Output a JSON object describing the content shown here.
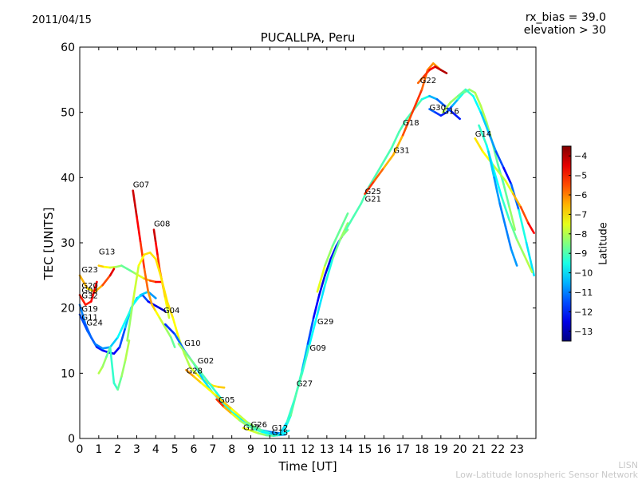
{
  "header": {
    "date": "2011/04/15",
    "rx_bias": "rx_bias = 39.0",
    "elevation": "elevation > 30"
  },
  "footer": {
    "org_short": "LISN",
    "org_long": "Low-Latitude Ionospheric Sensor Network"
  },
  "chart_data": {
    "type": "scatter",
    "title": "PUCALLPA, Peru",
    "xlabel": "Time [UT]",
    "ylabel": "TEC [UNITS]",
    "xlim": [
      0,
      24
    ],
    "ylim": [
      0,
      60
    ],
    "x_ticks": [
      0,
      1,
      2,
      3,
      4,
      5,
      6,
      7,
      8,
      9,
      10,
      11,
      12,
      13,
      14,
      15,
      16,
      17,
      18,
      19,
      20,
      21,
      22,
      23
    ],
    "y_ticks": [
      0,
      10,
      20,
      30,
      40,
      50,
      60
    ],
    "grid": false,
    "colorbar": {
      "label": "Latitude",
      "range": [
        -13.5,
        -3.5
      ],
      "ticks": [
        -4,
        -5,
        -6,
        -7,
        -8,
        -9,
        -10,
        -11,
        -12,
        -13
      ],
      "colormap": "jet"
    },
    "satellite_labels": [
      {
        "text": "G07",
        "x": 2.8,
        "y": 38.5
      },
      {
        "text": "G08",
        "x": 3.9,
        "y": 32.5
      },
      {
        "text": "G13",
        "x": 1.0,
        "y": 28.2
      },
      {
        "text": "G23",
        "x": 0.1,
        "y": 25.5
      },
      {
        "text": "G20",
        "x": 0.1,
        "y": 23.0
      },
      {
        "text": "G03",
        "x": 0.1,
        "y": 22.3
      },
      {
        "text": "G32",
        "x": 0.1,
        "y": 21.5
      },
      {
        "text": "G19",
        "x": 0.1,
        "y": 19.5
      },
      {
        "text": "G11",
        "x": 0.1,
        "y": 18.2
      },
      {
        "text": "G24",
        "x": 0.35,
        "y": 17.3
      },
      {
        "text": "G04",
        "x": 4.4,
        "y": 19.2
      },
      {
        "text": "G10",
        "x": 5.5,
        "y": 14.2
      },
      {
        "text": "G02",
        "x": 6.2,
        "y": 11.5
      },
      {
        "text": "G28",
        "x": 5.6,
        "y": 10.0
      },
      {
        "text": "G05",
        "x": 7.3,
        "y": 5.5
      },
      {
        "text": "G17",
        "x": 8.6,
        "y": 1.3
      },
      {
        "text": "G26",
        "x": 9.0,
        "y": 1.7
      },
      {
        "text": "G12",
        "x": 10.1,
        "y": 1.2
      },
      {
        "text": "G15",
        "x": 10.1,
        "y": 0.5
      },
      {
        "text": "G27",
        "x": 11.4,
        "y": 8.0
      },
      {
        "text": "G09",
        "x": 12.1,
        "y": 13.5
      },
      {
        "text": "G29",
        "x": 12.5,
        "y": 17.5
      },
      {
        "text": "G25",
        "x": 15.0,
        "y": 37.5
      },
      {
        "text": "G21",
        "x": 15.0,
        "y": 36.3
      },
      {
        "text": "G31",
        "x": 16.5,
        "y": 43.8
      },
      {
        "text": "G18",
        "x": 17.0,
        "y": 48.0
      },
      {
        "text": "G22",
        "x": 17.9,
        "y": 54.5
      },
      {
        "text": "G30",
        "x": 18.4,
        "y": 50.3
      },
      {
        "text": "G16",
        "x": 19.1,
        "y": 49.8
      },
      {
        "text": "G14",
        "x": 20.8,
        "y": 46.3
      }
    ],
    "series": [
      {
        "x": [
          0,
          0.3,
          0.6,
          0.9,
          1.2,
          1.5,
          1.8,
          2.1,
          2.4,
          2.7,
          3.0,
          3.3,
          3.6,
          3.9,
          4.2,
          4.5
        ],
        "y": [
          20.5,
          17.5,
          15.5,
          14.0,
          13.5,
          13.2,
          13.0,
          14.0,
          17.0,
          20.0,
          21.5,
          22.0,
          21.0,
          20.5,
          20.0,
          19.5
        ],
        "lat": [
          -11,
          -11,
          -11.5,
          -12,
          -12,
          -12.5,
          -12.5,
          -12,
          -11,
          -10,
          -10,
          -11,
          -12,
          -12.5,
          -12.5,
          -13
        ]
      },
      {
        "x": [
          0,
          0.4,
          0.8,
          1.2,
          1.6,
          2.0,
          2.4,
          2.8,
          3.2,
          3.6,
          4.0
        ],
        "y": [
          19.0,
          16.5,
          14.5,
          13.8,
          14.0,
          15.5,
          18.0,
          20.5,
          22.0,
          22.5,
          21.5
        ],
        "lat": [
          -11.5,
          -11.5,
          -11,
          -11,
          -10.5,
          -10,
          -9.5,
          -9.5,
          -10,
          -10.5,
          -11
        ]
      },
      {
        "x": [
          1.0,
          1.3,
          1.6,
          1.9,
          2.2,
          2.5,
          2.8,
          3.1,
          3.4,
          3.7,
          4.0,
          4.3
        ],
        "y": [
          26.5,
          26.3,
          26.2,
          26.3,
          26.5,
          26.0,
          25.5,
          25.0,
          24.5,
          24.2,
          24.0,
          24.0
        ],
        "lat": [
          -6.5,
          -7,
          -7.5,
          -8,
          -8.5,
          -9,
          -8.5,
          -8,
          -7,
          -6,
          -5,
          -4.5
        ]
      },
      {
        "x": [
          2.8,
          3.0,
          3.2,
          3.4,
          3.6,
          3.8,
          4.0,
          4.2,
          4.4,
          4.6,
          4.8,
          5.0
        ],
        "y": [
          38.0,
          34.0,
          30.0,
          26.0,
          22.5,
          20.5,
          19.5,
          18.5,
          17.5,
          16.5,
          15.5,
          14.0
        ],
        "lat": [
          -4,
          -4.5,
          -5,
          -5.5,
          -6,
          -6.5,
          -7,
          -7.5,
          -8,
          -8,
          -8.5,
          -9
        ]
      },
      {
        "x": [
          3.9,
          4.0,
          4.1,
          4.2,
          4.3,
          4.4,
          4.5,
          4.6,
          4.7
        ],
        "y": [
          32.0,
          30.0,
          28.0,
          26.0,
          24.5,
          23.0,
          21.5,
          20.0,
          18.5
        ],
        "lat": [
          -4,
          -4.5,
          -5,
          -5.5,
          -6,
          -6.5,
          -7,
          -7.5,
          -8
        ]
      },
      {
        "x": [
          1.0,
          1.2,
          1.4,
          1.6,
          1.8,
          2.0,
          2.2,
          2.4,
          2.6
        ],
        "y": [
          10.0,
          11.0,
          12.5,
          14.0,
          8.5,
          7.5,
          9.5,
          12.0,
          15.0
        ],
        "lat": [
          -8,
          -8,
          -8.5,
          -9,
          -9.5,
          -9,
          -8.5,
          -8,
          -8
        ]
      },
      {
        "x": [
          2.5,
          2.8,
          3.1,
          3.4,
          3.7,
          4.0,
          4.3,
          4.6,
          4.9,
          5.2,
          5.5,
          5.8,
          6.1,
          6.4,
          6.7,
          7.0,
          7.3,
          7.6
        ],
        "y": [
          15.0,
          21.0,
          26.5,
          28.2,
          28.5,
          27.5,
          24.5,
          21.0,
          18.5,
          15.5,
          13.0,
          11.0,
          10.0,
          9.2,
          8.6,
          8.1,
          7.9,
          7.8
        ],
        "lat": [
          -8.5,
          -8,
          -7.5,
          -7,
          -7,
          -7,
          -7,
          -7,
          -7,
          -7.5,
          -8,
          -8,
          -7.5,
          -7,
          -7,
          -7,
          -7,
          -6.5
        ]
      },
      {
        "x": [
          0,
          0.4,
          0.8,
          1.2,
          1.6,
          1.8
        ],
        "y": [
          25.0,
          23.0,
          22.5,
          23.5,
          25.0,
          26.0
        ],
        "lat": [
          -6,
          -7,
          -7,
          -6,
          -5,
          -4
        ]
      },
      {
        "x": [
          0,
          0.3,
          0.6,
          0.9
        ],
        "y": [
          22.0,
          20.5,
          21.0,
          24.0
        ],
        "lat": [
          -5,
          -5,
          -5,
          -4.5
        ]
      },
      {
        "x": [
          4.5,
          5.0,
          5.5,
          6.0,
          6.5,
          7.0,
          7.5,
          8.0,
          8.5,
          9.0,
          9.5,
          10.0,
          10.5
        ],
        "y": [
          17.5,
          16.0,
          13.5,
          11.5,
          9.0,
          7.0,
          5.5,
          4.0,
          3.0,
          2.0,
          1.3,
          1.0,
          0.8
        ],
        "lat": [
          -12,
          -11.5,
          -11,
          -10.5,
          -10,
          -10,
          -9.5,
          -9.5,
          -10,
          -10,
          -10.5,
          -11,
          -11
        ]
      },
      {
        "x": [
          5.2,
          5.6,
          6.0,
          6.4,
          6.8,
          7.2,
          7.6,
          8.0,
          8.4,
          8.8,
          9.2,
          9.6,
          10.0,
          10.4
        ],
        "y": [
          14.5,
          13.0,
          11.5,
          10.0,
          8.5,
          7.0,
          5.5,
          4.5,
          3.5,
          2.5,
          1.8,
          1.2,
          0.8,
          0.6
        ],
        "lat": [
          -8,
          -8.5,
          -8.5,
          -9,
          -9,
          -9.5,
          -9.5,
          -9.5,
          -10,
          -10,
          -10,
          -10.5,
          -10.5,
          -11
        ]
      },
      {
        "x": [
          5.6,
          6.0,
          6.4,
          6.8,
          7.2,
          7.6,
          8.0,
          8.4,
          8.8,
          9.2,
          9.6,
          10.0
        ],
        "y": [
          10.5,
          9.5,
          8.5,
          7.5,
          6.5,
          5.5,
          4.5,
          3.5,
          2.5,
          1.8,
          1.2,
          0.8
        ],
        "lat": [
          -6,
          -6.5,
          -7,
          -7.5,
          -7,
          -6.5,
          -7,
          -7.5,
          -8,
          -8.5,
          -9,
          -9.5
        ]
      },
      {
        "x": [
          7.2,
          7.6,
          8.0,
          8.4,
          8.8,
          9.2,
          9.6,
          10.0,
          10.4,
          10.8
        ],
        "y": [
          6.0,
          4.8,
          3.8,
          2.8,
          2.0,
          1.4,
          1.0,
          0.7,
          0.5,
          0.6
        ],
        "lat": [
          -4.5,
          -6,
          -7,
          -8,
          -8.5,
          -9,
          -9.5,
          -10,
          -10.5,
          -11
        ]
      },
      {
        "x": [
          8.6,
          9.0,
          9.4,
          9.8,
          10.2,
          10.6,
          11.0
        ],
        "y": [
          1.6,
          1.2,
          0.8,
          0.5,
          0.4,
          0.6,
          1.2
        ],
        "lat": [
          -7,
          -7.5,
          -8,
          -8.5,
          -9,
          -9.5,
          -10
        ]
      },
      {
        "x": [
          10.5,
          10.8,
          11.1,
          11.4,
          11.7,
          12.0,
          12.3,
          12.6,
          12.9,
          13.2,
          13.5,
          13.8,
          14.1
        ],
        "y": [
          0.6,
          1.5,
          3.5,
          7.0,
          10.5,
          14.5,
          18.5,
          22.0,
          25.0,
          27.5,
          29.5,
          31.0,
          32.0
        ],
        "lat": [
          -11,
          -10,
          -9,
          -8.5,
          -10,
          -11,
          -12,
          -12.5,
          -12.5,
          -12.5,
          -12,
          -12,
          -5
        ]
      },
      {
        "x": [
          10.5,
          10.9,
          11.3,
          11.7,
          12.1,
          12.5,
          12.9,
          13.3,
          13.7,
          14.1
        ],
        "y": [
          0.5,
          2.5,
          6.0,
          10.0,
          14.5,
          19.0,
          23.5,
          27.5,
          30.5,
          33.0
        ],
        "lat": [
          -10.5,
          -9.5,
          -9,
          -9,
          -9.5,
          -10,
          -10,
          -9,
          -8.5,
          -8
        ]
      },
      {
        "x": [
          12.5,
          12.9,
          13.3,
          13.7,
          14.1
        ],
        "y": [
          22.5,
          26.5,
          29.5,
          32.0,
          34.5
        ],
        "lat": [
          -7,
          -8,
          -8.5,
          -9,
          -8.5
        ]
      },
      {
        "x": [
          14.0,
          14.4,
          14.8,
          15.2,
          15.6,
          16.0,
          16.4,
          16.8,
          17.2,
          17.6,
          18.0,
          18.4,
          18.8,
          19.2,
          19.6,
          20.0
        ],
        "y": [
          32.0,
          34.0,
          36.0,
          38.5,
          40.5,
          42.5,
          44.5,
          47.0,
          49.0,
          50.5,
          52.0,
          52.5,
          52.0,
          51.0,
          50.0,
          49.0
        ],
        "lat": [
          -9,
          -9,
          -9,
          -9,
          -9,
          -9,
          -9,
          -9,
          -9,
          -9,
          -9,
          -10,
          -11,
          -11.5,
          -12,
          -12
        ]
      },
      {
        "x": [
          15.0,
          15.5,
          16.0,
          16.5,
          17.0,
          17.5,
          18.0,
          18.3,
          18.6,
          19.0
        ],
        "y": [
          37.5,
          39.5,
          41.5,
          43.5,
          46.5,
          50.0,
          53.5,
          56.5,
          57.5,
          56.5
        ],
        "lat": [
          -5,
          -5.5,
          -6,
          -7,
          -6,
          -5,
          -5.5,
          -6,
          -6,
          -6.5
        ]
      },
      {
        "x": [
          17.8,
          18.1,
          18.4,
          18.7,
          19.0,
          19.3
        ],
        "y": [
          54.5,
          55.5,
          56.5,
          57.0,
          56.5,
          56.0
        ],
        "lat": [
          -6,
          -5.5,
          -5,
          -4.5,
          -4,
          -4
        ]
      },
      {
        "x": [
          18.4,
          18.7,
          19.0,
          19.3,
          19.6,
          19.9,
          20.2,
          20.5,
          20.8,
          21.1,
          21.4,
          21.7,
          22.0,
          22.3,
          22.6,
          22.9
        ],
        "y": [
          50.5,
          50.0,
          49.5,
          50.0,
          51.0,
          52.0,
          53.0,
          53.5,
          53.0,
          51.0,
          48.5,
          45.5,
          42.0,
          39.0,
          35.5,
          32.0
        ],
        "lat": [
          -11,
          -11.5,
          -12,
          -12,
          -11,
          -10,
          -9,
          -8.5,
          -8,
          -8,
          -8,
          -8.5,
          -9,
          -9,
          -8.5,
          -8
        ]
      },
      {
        "x": [
          19.1,
          19.5,
          19.9,
          20.3,
          20.7,
          21.1,
          21.5,
          21.9,
          22.3,
          22.7,
          23.1,
          23.5,
          23.9
        ],
        "y": [
          50.0,
          51.5,
          52.5,
          53.5,
          52.5,
          50.0,
          47.0,
          44.0,
          41.5,
          39.0,
          35.0,
          30.0,
          25.0
        ],
        "lat": [
          -8,
          -8,
          -8.5,
          -9,
          -9.5,
          -10,
          -10.5,
          -11,
          -12,
          -12.5,
          -10,
          -9,
          -11
        ]
      },
      {
        "x": [
          20.8,
          21.2,
          21.6,
          22.0,
          22.4,
          22.8,
          23.2,
          23.6,
          23.9
        ],
        "y": [
          46.0,
          44.0,
          42.5,
          41.0,
          39.5,
          37.5,
          35.5,
          33.0,
          31.5
        ],
        "lat": [
          -7,
          -7,
          -7.5,
          -8,
          -8,
          -7,
          -6,
          -5,
          -4.5
        ]
      },
      {
        "x": [
          21.0,
          21.4,
          21.8,
          22.2,
          22.6,
          23.0,
          23.4,
          23.8
        ],
        "y": [
          48.0,
          45.0,
          41.0,
          37.0,
          33.5,
          30.5,
          28.0,
          25.5
        ],
        "lat": [
          -9,
          -9.5,
          -10,
          -9.5,
          -9,
          -8.5,
          -8,
          -8
        ]
      },
      {
        "x": [
          21.5,
          21.8,
          22.1,
          22.4,
          22.7,
          23.0
        ],
        "y": [
          44.0,
          40.0,
          36.0,
          32.5,
          29.0,
          26.5
        ],
        "lat": [
          -10,
          -10.5,
          -11,
          -11,
          -11,
          -10.5
        ]
      }
    ]
  }
}
